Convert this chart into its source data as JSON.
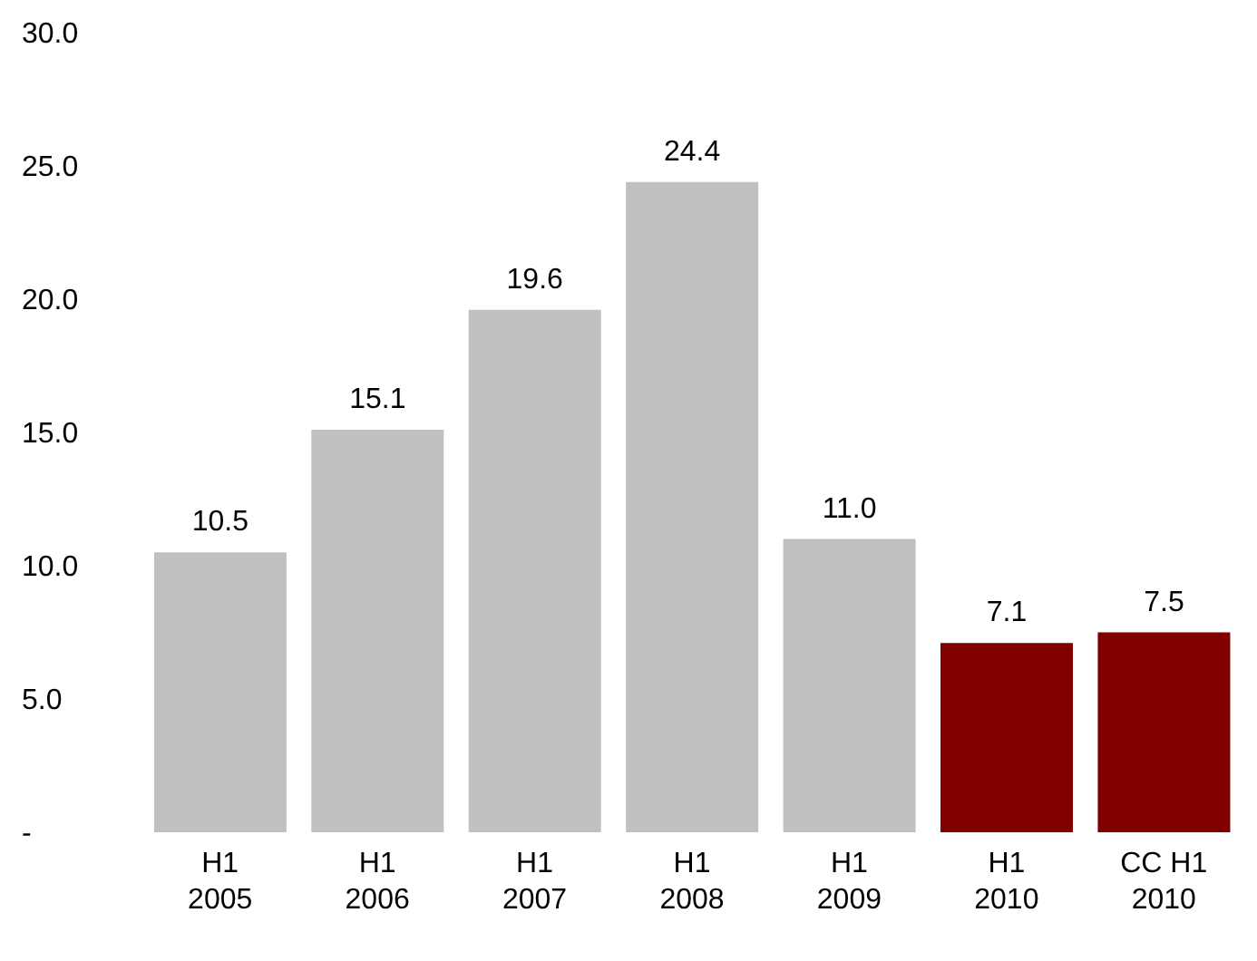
{
  "chart_data": {
    "type": "bar",
    "categories": [
      "H1 2005",
      "H1 2006",
      "H1 2007",
      "H1 2008",
      "H1 2009",
      "H1 2010",
      "CC H1 2010"
    ],
    "values": [
      10.5,
      15.1,
      19.6,
      24.4,
      11.0,
      7.1,
      7.5
    ],
    "colors": [
      "#c0c0c0",
      "#c0c0c0",
      "#c0c0c0",
      "#c0c0c0",
      "#c0c0c0",
      "#800000",
      "#800000"
    ],
    "value_labels": [
      "10.5",
      "15.1",
      "19.6",
      "24.4",
      "11.0",
      "7.1",
      "7.5"
    ],
    "ylim": [
      0,
      30
    ],
    "yticks": [
      {
        "value": 0,
        "label": "-"
      },
      {
        "value": 5,
        "label": "5.0"
      },
      {
        "value": 10,
        "label": "10.0"
      },
      {
        "value": 15,
        "label": "15.0"
      },
      {
        "value": 20,
        "label": "20.0"
      },
      {
        "value": 25,
        "label": "25.0"
      },
      {
        "value": 30,
        "label": "30.0"
      }
    ],
    "grid": false,
    "legend": false
  }
}
